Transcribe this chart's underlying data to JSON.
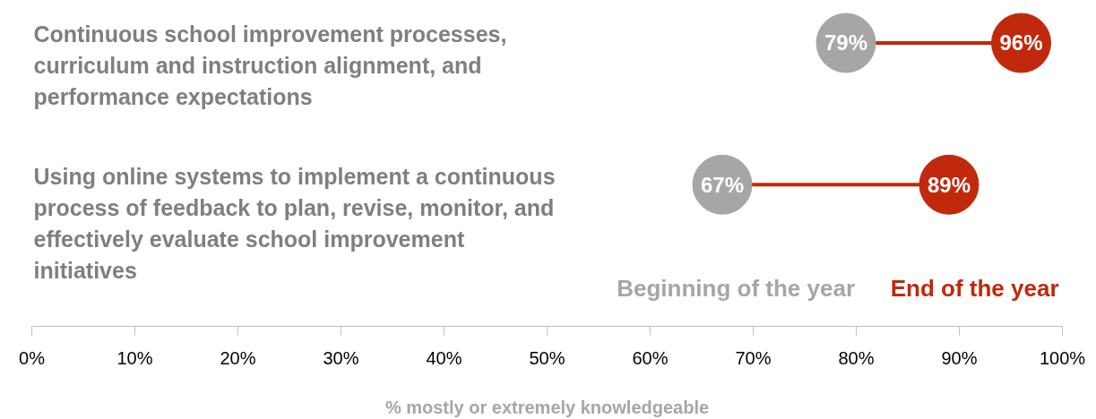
{
  "chart_data": {
    "type": "scatter",
    "categories": [
      "Continuous school improvement processes, curriculum and instruction alignment, and performance expectations",
      "Using online systems to implement a continuous process of feedback to plan, revise, monitor, and effectively evaluate school improvement initiatives"
    ],
    "series": [
      {
        "name": "Beginning of the year",
        "color": "#a6a6a6",
        "values": [
          79,
          67
        ],
        "value_labels": [
          "79%",
          "67%"
        ]
      },
      {
        "name": "End of the year",
        "color": "#c0290b",
        "values": [
          96,
          89
        ],
        "value_labels": [
          "96%",
          "89%"
        ]
      }
    ],
    "xlim": [
      0,
      100
    ],
    "xticks": [
      {
        "value": 0,
        "label": "0%"
      },
      {
        "value": 10,
        "label": "10%"
      },
      {
        "value": 20,
        "label": "20%"
      },
      {
        "value": 30,
        "label": "30%"
      },
      {
        "value": 40,
        "label": "40%"
      },
      {
        "value": 50,
        "label": "50%"
      },
      {
        "value": 60,
        "label": "60%"
      },
      {
        "value": 70,
        "label": "70%"
      },
      {
        "value": 80,
        "label": "80%"
      },
      {
        "value": 90,
        "label": "90%"
      },
      {
        "value": 100,
        "label": "100%"
      }
    ],
    "xlabel": "% mostly or extremely knowledgeable",
    "legend": "bottom right",
    "marker": "circle",
    "orientation": "horizontal"
  }
}
